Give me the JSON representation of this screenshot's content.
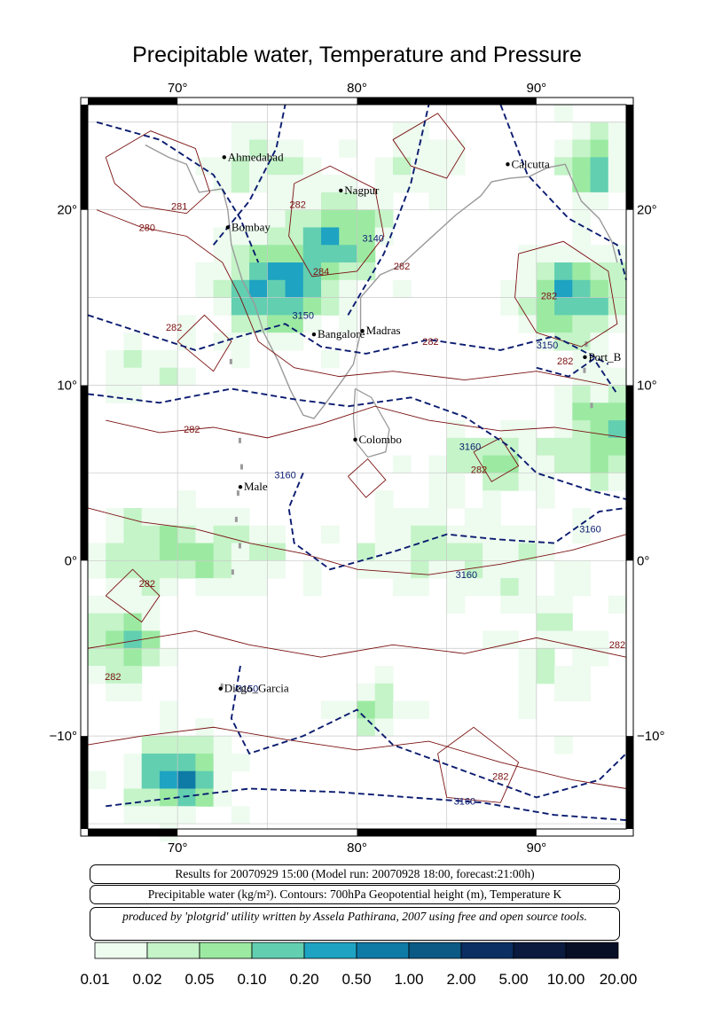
{
  "title": "Precipitable water, Temperature and Pressure",
  "axes": {
    "lon_ticks": [
      "70°",
      "80°",
      "90°"
    ],
    "lat_ticks": [
      "20°",
      "10°",
      "0°",
      "−10°"
    ]
  },
  "cities": [
    {
      "name": "Ahmedabad",
      "lon": 72.6,
      "lat": 23.0
    },
    {
      "name": "Nagpur",
      "lon": 79.1,
      "lat": 21.1
    },
    {
      "name": "Calcutta",
      "lon": 88.4,
      "lat": 22.6
    },
    {
      "name": "Bombay",
      "lon": 72.8,
      "lat": 19.0
    },
    {
      "name": "Bangalore",
      "lon": 77.6,
      "lat": 12.9
    },
    {
      "name": "Madras",
      "lon": 80.3,
      "lat": 13.1
    },
    {
      "name": "Port_B",
      "lon": 92.7,
      "lat": 11.6
    },
    {
      "name": "Colombo",
      "lon": 79.9,
      "lat": 6.9
    },
    {
      "name": "Male",
      "lon": 73.5,
      "lat": 4.2
    },
    {
      "name": "Diego_Garcia",
      "lon": 72.4,
      "lat": -7.3
    }
  ],
  "contour_labels": [
    {
      "text": "281",
      "lon": 70.1,
      "lat": 20.0
    },
    {
      "text": "280",
      "lon": 68.3,
      "lat": 18.8
    },
    {
      "text": "282",
      "lon": 76.7,
      "lat": 20.1
    },
    {
      "text": "3140",
      "lon": 80.9,
      "lat": 18.2
    },
    {
      "text": "284",
      "lon": 78.0,
      "lat": 16.3
    },
    {
      "text": "282",
      "lon": 82.5,
      "lat": 16.6
    },
    {
      "text": "282",
      "lon": 90.7,
      "lat": 14.9
    },
    {
      "text": "282",
      "lon": 69.8,
      "lat": 13.1
    },
    {
      "text": "3150",
      "lon": 77.0,
      "lat": 13.8
    },
    {
      "text": "282",
      "lon": 84.1,
      "lat": 12.3
    },
    {
      "text": "3150",
      "lon": 90.6,
      "lat": 12.1
    },
    {
      "text": "282",
      "lon": 91.6,
      "lat": 11.2
    },
    {
      "text": "282",
      "lon": 70.8,
      "lat": 7.3
    },
    {
      "text": "3160",
      "lon": 86.3,
      "lat": 6.3
    },
    {
      "text": "282",
      "lon": 86.8,
      "lat": 5.0
    },
    {
      "text": "3160",
      "lon": 76.0,
      "lat": 4.7
    },
    {
      "text": "3160",
      "lon": 93.0,
      "lat": 1.6
    },
    {
      "text": "282",
      "lon": 68.3,
      "lat": -1.5
    },
    {
      "text": "3160",
      "lon": 86.1,
      "lat": -1.0
    },
    {
      "text": "282",
      "lon": 94.5,
      "lat": -5.0
    },
    {
      "text": "282",
      "lon": 66.4,
      "lat": -6.8
    },
    {
      "text": "3150",
      "lon": 73.9,
      "lat": -7.5
    },
    {
      "text": "282",
      "lon": 88.0,
      "lat": -12.5
    },
    {
      "text": "3160",
      "lon": 86.0,
      "lat": -13.9
    }
  ],
  "info": {
    "results": "Results for 20070929 15:00 (Model run: 20070928 18:00, forecast:21:00h)",
    "units_line": "Precipitable water (kg/m²).  Contours: 700hPa Geopotential height (m), Temperature K",
    "credit": "produced by 'plotgrid' utility written by Assela Pathirana, 2007 using free and open source tools."
  },
  "colorbar": {
    "labels": [
      "0.01",
      "0.02",
      "0.05",
      "0.10",
      "0.20",
      "0.50",
      "1.00",
      "2.00",
      "5.00",
      "10.00",
      "20.00"
    ],
    "colors": [
      "#eefbef",
      "#c4f4c8",
      "#9ceaa2",
      "#62cfb0",
      "#1ea3c2",
      "#0e7aa6",
      "#0a5a85",
      "#0b2f62",
      "#0b1a3f",
      "#070f27",
      "#05081a"
    ]
  }
}
